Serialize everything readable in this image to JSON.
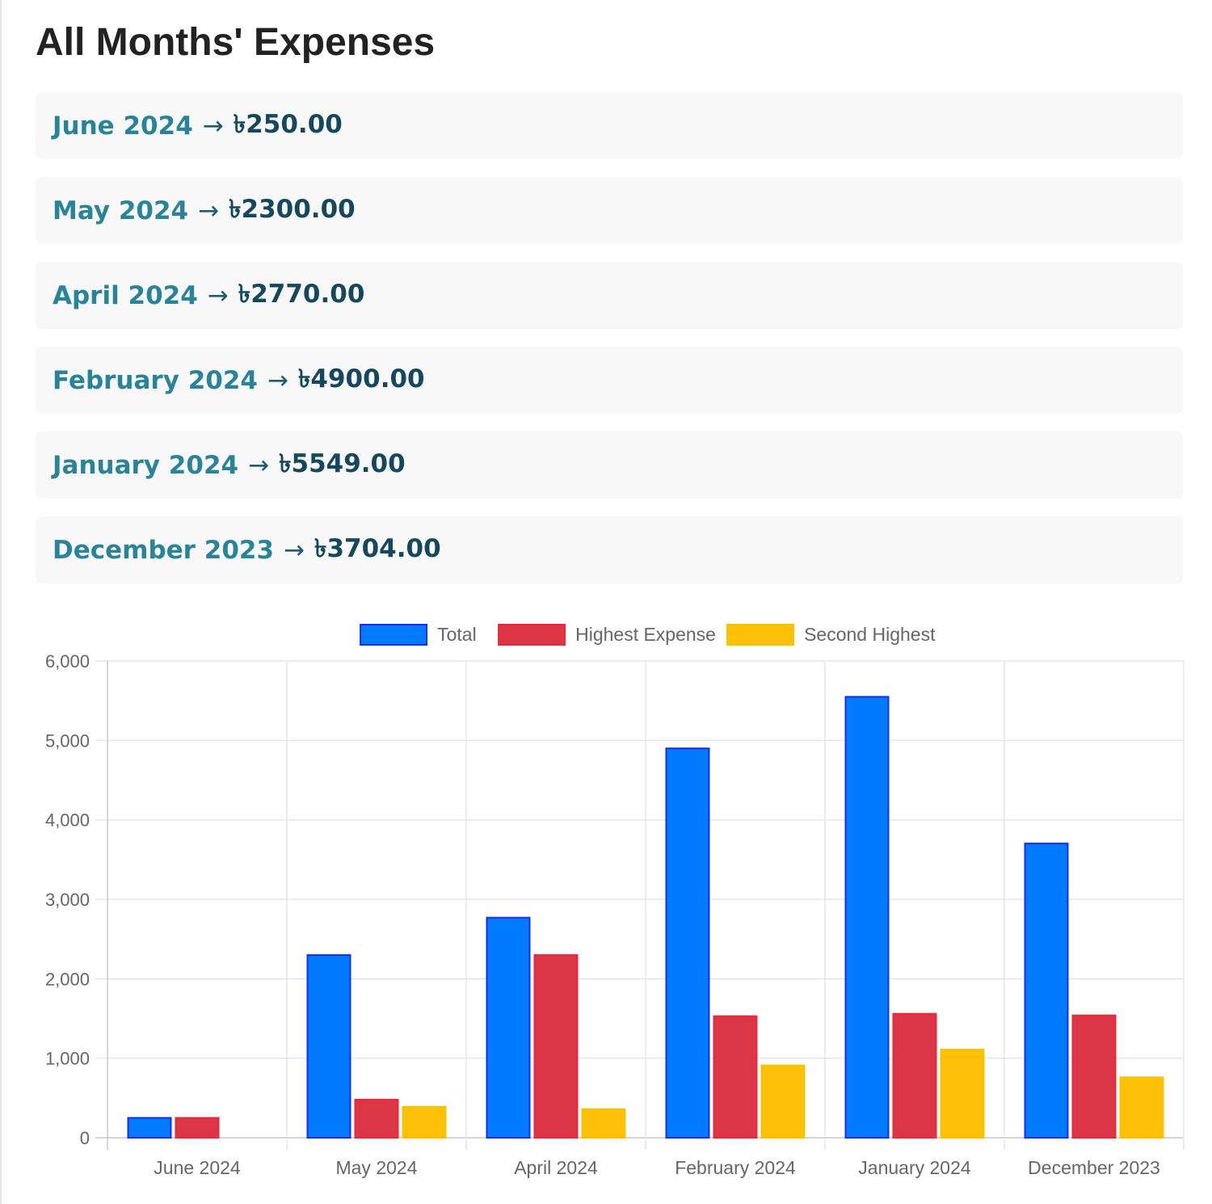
{
  "page": {
    "title": "All Months' Expenses"
  },
  "months": [
    {
      "label": "June 2024",
      "arrow": "→",
      "amount": "৳250.00"
    },
    {
      "label": "May 2024",
      "arrow": "→",
      "amount": "৳2300.00"
    },
    {
      "label": "April 2024",
      "arrow": "→",
      "amount": "৳2770.00"
    },
    {
      "label": "February 2024",
      "arrow": "→",
      "amount": "৳4900.00"
    },
    {
      "label": "January 2024",
      "arrow": "→",
      "amount": "৳5549.00"
    },
    {
      "label": "December 2023",
      "arrow": "→",
      "amount": "৳3704.00"
    }
  ],
  "colors": {
    "accent_text": "#2b8398",
    "amount_text": "#15485c",
    "total": "#007bff",
    "highest": "#dc3545",
    "second": "#ffc107"
  },
  "chart_data": {
    "type": "bar",
    "categories": [
      "June 2024",
      "May 2024",
      "April 2024",
      "February 2024",
      "January 2024",
      "December 2023"
    ],
    "series": [
      {
        "name": "Total",
        "color": "#007bff",
        "border": "#1a2ee8",
        "values": [
          250,
          2300,
          2770,
          4900,
          5549,
          3704
        ]
      },
      {
        "name": "Highest Expense",
        "color": "#dc3545",
        "border": "#e8283a",
        "values": [
          250,
          480,
          2300,
          1530,
          1560,
          1540
        ]
      },
      {
        "name": "Second Highest",
        "color": "#ffc107",
        "border": "#f2c300",
        "values": [
          0,
          390,
          360,
          910,
          1110,
          760
        ]
      }
    ],
    "ylim": [
      0,
      6000
    ],
    "yticks": [
      "0",
      "1,000",
      "2,000",
      "3,000",
      "4,000",
      "5,000",
      "6,000"
    ],
    "ytick_values": [
      0,
      1000,
      2000,
      3000,
      4000,
      5000,
      6000
    ],
    "grid": true,
    "legend": "top-center"
  }
}
